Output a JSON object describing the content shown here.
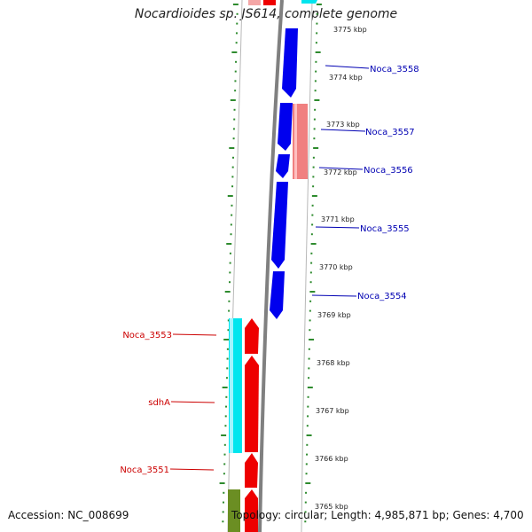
{
  "title": "Nocardioides sp. JS614, complete genome",
  "footer": {
    "accession": "Accession: NC_008699",
    "topology": "Topology: circular; Length: 4,985,871 bp; Genes: 4,700"
  },
  "colors": {
    "forward_label": "#0000b3",
    "reverse_label": "#cc0000",
    "blue_gene": "#0000ee",
    "red_gene": "#ee0000",
    "cyan_gene": "#00e5ee",
    "pink_gene": "#f08080",
    "olive_gene": "#6b8e23",
    "backbone": "#808080",
    "tick": "#2e8b2e"
  },
  "ticks": [
    "3775 kbp",
    "3774 kbp",
    "3773 kbp",
    "3772 kbp",
    "3771 kbp",
    "3770 kbp",
    "3769 kbp",
    "3768 kbp",
    "3767 kbp",
    "3766 kbp",
    "3765 kbp"
  ],
  "gene_labels_forward": [
    "Noca_3558",
    "Noca_3557",
    "Noca_3556",
    "Noca_3555",
    "Noca_3554"
  ],
  "gene_labels_reverse": [
    "Noca_3553",
    "sdhA",
    "Noca_3551"
  ]
}
